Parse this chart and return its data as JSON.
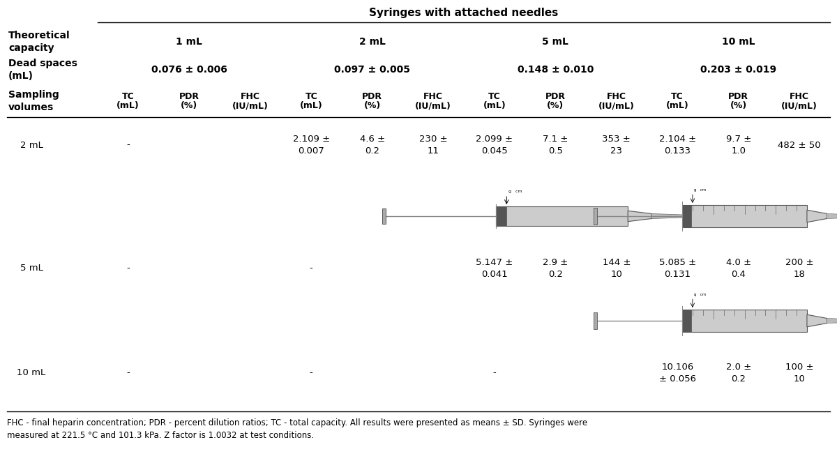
{
  "title": "Syringes with attached needles",
  "capacities": [
    "1 mL",
    "2 mL",
    "5 mL",
    "10 mL"
  ],
  "dead_spaces": [
    "0.076 ± 0.006",
    "0.097 ± 0.005",
    "0.148 ± 0.010",
    "0.203 ± 0.019"
  ],
  "col_headers_line1": [
    "TC",
    "PDR",
    "FHC",
    "TC",
    "PDR",
    "FHC",
    "TC",
    "PDR",
    "FHC",
    "TC",
    "PDR",
    "FHC"
  ],
  "col_headers_line2": [
    "(mL)",
    "(%)",
    "(IU/mL)",
    "(mL)",
    "(%)",
    "(IU/mL)",
    "(mL)",
    "(%)",
    "(IU/mL)",
    "(mL)",
    "(%)",
    "(IU/mL)"
  ],
  "sampling_rows": [
    {
      "label": "2 mL",
      "values": [
        "-",
        "",
        "",
        "2.109 ±\n0.007",
        "4.6 ±\n0.2",
        "230 ±\n11",
        "2.099 ±\n0.045",
        "7.1 ±\n0.5",
        "353 ±\n23",
        "2.104 ±\n0.133",
        "9.7 ±\n1.0",
        "482 ± 50"
      ]
    },
    {
      "label": "5 mL",
      "values": [
        "-",
        "",
        "",
        "-",
        "",
        "",
        "5.147 ±\n0.041",
        "2.9 ±\n0.2",
        "144 ±\n10",
        "5.085 ±\n0.131",
        "4.0 ±\n0.4",
        "200 ±\n18"
      ]
    },
    {
      "label": "10 mL",
      "values": [
        "-",
        "",
        "",
        "-",
        "",
        "",
        "-",
        "",
        "",
        "10.106\n± 0.056",
        "2.0 ±\n0.2",
        "100 ±\n10"
      ]
    }
  ],
  "footnote": "FHC - final heparin concentration; PDR - percent dilution ratios; TC - total capacity. All results were presented as means ± SD. Syringes were\nmeasured at 221.5 °C and 101.3 kPa. Z factor is 1.0032 at test conditions.",
  "bg_color": "#ffffff",
  "text_color": "#000000"
}
